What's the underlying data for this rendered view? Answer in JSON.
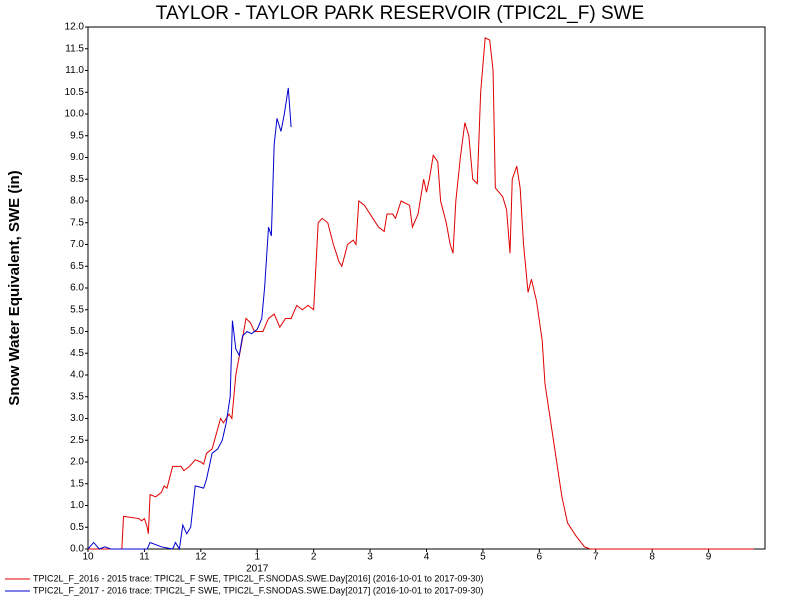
{
  "chart_data": {
    "type": "line",
    "title": "TAYLOR - TAYLOR PARK RESERVOIR (TPIC2L_F) SWE",
    "ylabel": "Snow Water Equivalent, SWE (in)",
    "annotations": [
      "2017"
    ],
    "xlim": [
      0,
      12
    ],
    "ylim": [
      0,
      12
    ],
    "xticks": [
      {
        "value": 0,
        "label": "10"
      },
      {
        "value": 1,
        "label": "11"
      },
      {
        "value": 2,
        "label": "12"
      },
      {
        "value": 3,
        "label": "1"
      },
      {
        "value": 4,
        "label": "2"
      },
      {
        "value": 5,
        "label": "3"
      },
      {
        "value": 6,
        "label": "4"
      },
      {
        "value": 7,
        "label": "5"
      },
      {
        "value": 8,
        "label": "6"
      },
      {
        "value": 9,
        "label": "7"
      },
      {
        "value": 10,
        "label": "8"
      },
      {
        "value": 11,
        "label": "9"
      }
    ],
    "yticks": [
      {
        "value": 0,
        "label": "0.0"
      },
      0.5,
      {
        "value": 1,
        "label": "1.0"
      },
      1.5,
      {
        "value": 2,
        "label": "2.0"
      },
      2.5,
      {
        "value": 3,
        "label": "3.0"
      },
      3.5,
      {
        "value": 4,
        "label": "4.0"
      },
      4.5,
      {
        "value": 5,
        "label": "5.0"
      },
      5.5,
      {
        "value": 6,
        "label": "6.0"
      },
      6.5,
      {
        "value": 7,
        "label": "7.0"
      },
      7.5,
      {
        "value": 8,
        "label": "8.0"
      },
      8.5,
      {
        "value": 9,
        "label": "9.0"
      },
      9.5,
      {
        "value": 10,
        "label": "10.0"
      },
      10.5,
      {
        "value": 11,
        "label": "11.0"
      },
      11.5,
      {
        "value": 12,
        "label": "12.0"
      }
    ],
    "series": [
      {
        "name": "TPIC2L_F_2016 - 2015 trace: TPIC2L_F SWE, TPIC2L_F.SNODAS.SWE.Day[2016] (2016-10-01 to 2017-09-30)",
        "color": "#e00000",
        "x": [
          0,
          0.6,
          0.63,
          0.9,
          0.95,
          1.0,
          1.05,
          1.07,
          1.1,
          1.2,
          1.3,
          1.35,
          1.4,
          1.5,
          1.65,
          1.7,
          1.75,
          1.8,
          1.9,
          2.0,
          2.05,
          2.1,
          2.2,
          2.35,
          2.4,
          2.5,
          2.55,
          2.62,
          2.72,
          2.8,
          2.88,
          2.95,
          3.0,
          3.1,
          3.2,
          3.3,
          3.4,
          3.5,
          3.6,
          3.7,
          3.8,
          3.9,
          4.0,
          4.08,
          4.15,
          4.25,
          4.35,
          4.45,
          4.5,
          4.6,
          4.7,
          4.75,
          4.8,
          4.9,
          5.0,
          5.15,
          5.25,
          5.3,
          5.4,
          5.45,
          5.55,
          5.7,
          5.75,
          5.85,
          5.95,
          6.0,
          6.05,
          6.12,
          6.2,
          6.25,
          6.35,
          6.42,
          6.47,
          6.52,
          6.6,
          6.68,
          6.75,
          6.82,
          6.9,
          6.96,
          7.04,
          7.12,
          7.18,
          7.22,
          7.35,
          7.42,
          7.48,
          7.52,
          7.6,
          7.66,
          7.72,
          7.8,
          7.86,
          7.95,
          8.05,
          8.1,
          8.25,
          8.4,
          8.5,
          8.65,
          8.8,
          8.9,
          11.8
        ],
        "values": [
          0,
          0,
          0.75,
          0.7,
          0.65,
          0.7,
          0.5,
          0.35,
          1.25,
          1.2,
          1.3,
          1.45,
          1.4,
          1.9,
          1.9,
          1.8,
          1.85,
          1.9,
          2.05,
          2.0,
          1.95,
          2.2,
          2.3,
          3.0,
          2.9,
          3.1,
          3.0,
          4.0,
          4.7,
          5.3,
          5.2,
          5.0,
          5.0,
          5.0,
          5.3,
          5.4,
          5.1,
          5.3,
          5.3,
          5.6,
          5.5,
          5.6,
          5.5,
          7.5,
          7.6,
          7.5,
          7.0,
          6.6,
          6.5,
          7.0,
          7.1,
          7.0,
          8.0,
          7.9,
          7.7,
          7.4,
          7.3,
          7.7,
          7.7,
          7.6,
          8.0,
          7.9,
          7.4,
          7.7,
          8.5,
          8.2,
          8.5,
          9.05,
          8.9,
          8.0,
          7.5,
          7.0,
          6.8,
          8.0,
          9.0,
          9.8,
          9.5,
          8.5,
          8.4,
          10.5,
          11.75,
          11.7,
          11.0,
          8.3,
          8.1,
          7.8,
          6.8,
          8.5,
          8.8,
          8.3,
          7.0,
          5.9,
          6.2,
          5.7,
          4.8,
          3.8,
          2.5,
          1.2,
          0.6,
          0.3,
          0.05,
          0,
          0
        ]
      },
      {
        "name": "TPIC2L_F_2017 - 2016 trace: TPIC2L_F SWE, TPIC2L_F.SNODAS.SWE.Day[2017] (2016-10-01 to 2017-09-30)",
        "color": "#0000d0",
        "x": [
          0,
          0.1,
          0.2,
          0.3,
          0.4,
          1.05,
          1.1,
          1.3,
          1.5,
          1.55,
          1.62,
          1.68,
          1.75,
          1.82,
          1.9,
          2.05,
          2.1,
          2.2,
          2.3,
          2.38,
          2.45,
          2.52,
          2.56,
          2.62,
          2.68,
          2.74,
          2.82,
          2.9,
          3.0,
          3.08,
          3.13,
          3.2,
          3.25,
          3.3,
          3.35,
          3.42,
          3.48,
          3.55,
          3.6
        ],
        "values": [
          0,
          0.15,
          0,
          0.05,
          0,
          0,
          0.15,
          0.05,
          0,
          0.15,
          0,
          0.55,
          0.35,
          0.5,
          1.45,
          1.4,
          1.6,
          2.2,
          2.3,
          2.5,
          2.9,
          3.5,
          5.25,
          4.6,
          4.45,
          4.9,
          5.0,
          4.95,
          5.05,
          5.3,
          6.0,
          7.4,
          7.2,
          9.3,
          9.9,
          9.6,
          10.0,
          10.6,
          9.7
        ]
      }
    ]
  }
}
